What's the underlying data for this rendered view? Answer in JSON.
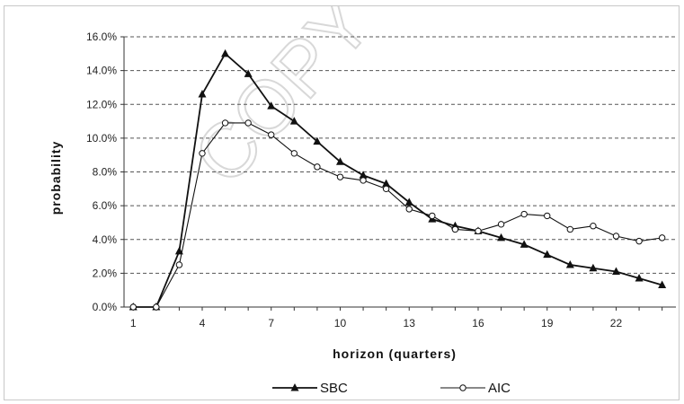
{
  "chart_data": {
    "type": "line",
    "title": "",
    "xlabel": "horizon (quarters)",
    "ylabel": "probability",
    "x": [
      1,
      2,
      3,
      4,
      5,
      6,
      7,
      8,
      9,
      10,
      11,
      12,
      13,
      14,
      15,
      16,
      17,
      18,
      19,
      20,
      21,
      22,
      23,
      24
    ],
    "x_ticks": [
      "1",
      "4",
      "7",
      "10",
      "13",
      "16",
      "19",
      "22"
    ],
    "x_tick_values": [
      1,
      4,
      7,
      10,
      13,
      16,
      19,
      22
    ],
    "y_ticks": [
      "0.0%",
      "2.0%",
      "4.0%",
      "6.0%",
      "8.0%",
      "10.0%",
      "12.0%",
      "14.0%",
      "16.0%"
    ],
    "ylim": [
      0,
      16
    ],
    "grid": "horizontal dashed",
    "legend_position": "bottom",
    "series": [
      {
        "name": "SBC",
        "marker": "filled-triangle",
        "color": "#111111",
        "values": [
          0.0,
          0.0,
          3.3,
          12.6,
          15.0,
          13.8,
          11.9,
          11.0,
          9.8,
          8.6,
          7.8,
          7.3,
          6.2,
          5.2,
          4.8,
          4.5,
          4.1,
          3.7,
          3.1,
          2.5,
          2.3,
          2.1,
          1.7,
          1.3
        ]
      },
      {
        "name": "AIC",
        "marker": "open-circle",
        "color": "#111111",
        "values": [
          0.0,
          0.0,
          2.5,
          9.1,
          10.9,
          10.9,
          10.2,
          9.1,
          8.3,
          7.7,
          7.5,
          7.0,
          5.8,
          5.4,
          4.6,
          4.5,
          4.9,
          5.5,
          5.4,
          4.6,
          4.8,
          4.2,
          3.9,
          4.1
        ]
      }
    ]
  },
  "watermark": "COPY"
}
